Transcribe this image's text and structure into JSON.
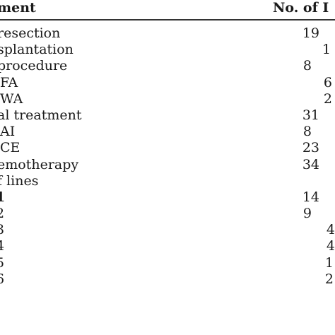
{
  "table": {
    "headers": {
      "treatment": "ment",
      "count": "No. of I"
    },
    "rows": [
      {
        "label": "resection",
        "value": "19"
      },
      {
        "label": "splantation",
        "value": "1"
      },
      {
        "label": "procedure",
        "value": "8"
      },
      {
        "label": "FA",
        "value": "6"
      },
      {
        "label": "WA",
        "value": "2"
      },
      {
        "label": "al treatment",
        "value": "31"
      },
      {
        "label": "AI",
        "value": "8"
      },
      {
        "label": "CE",
        "value": "23"
      },
      {
        "label": "emotherapy",
        "value": "34"
      },
      {
        "label": "f lines",
        "value": ""
      },
      {
        "label": "1",
        "value": "14"
      },
      {
        "label": "2",
        "value": "9"
      },
      {
        "label": "3",
        "value": "4"
      },
      {
        "label": "4",
        "value": "4"
      },
      {
        "label": "5",
        "value": "1"
      },
      {
        "label": "6",
        "value": "2"
      }
    ]
  }
}
